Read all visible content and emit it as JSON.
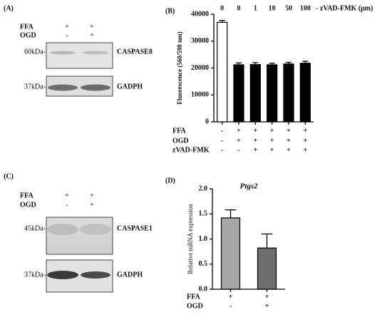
{
  "blots": [
    {
      "panel": "(A)",
      "conditions": [
        {
          "name": "FFA",
          "signs": [
            "+",
            "+"
          ]
        },
        {
          "name": "OGD",
          "signs": [
            "-",
            "+"
          ]
        }
      ],
      "rows": [
        {
          "marker": "60kDa-",
          "protein": "CASPASE8"
        },
        {
          "marker": "37kDa-",
          "protein": "GADPH"
        }
      ]
    },
    {
      "panel": "(C)",
      "conditions": [
        {
          "name": "FFA",
          "signs": [
            "+",
            "+"
          ]
        },
        {
          "name": "OGD",
          "signs": [
            "-",
            "+"
          ]
        }
      ],
      "rows": [
        {
          "marker": "45kDa-",
          "protein": "CASPASE1"
        },
        {
          "marker": "37kDa-",
          "protein": "GADPH"
        }
      ]
    }
  ],
  "chart_data": [
    {
      "type": "bar",
      "panel": "(B)",
      "ylabel": "Fluorescence (560/590 nm)",
      "categories": [
        "0",
        "0",
        "1",
        "10",
        "50",
        "100"
      ],
      "annotation": "- zVAD-FMK (μm)",
      "values": [
        37000,
        21200,
        21300,
        21200,
        21500,
        21800
      ],
      "errors": [
        700,
        700,
        700,
        600,
        600,
        700
      ],
      "colors": [
        "#ffffff",
        "#000000",
        "#000000",
        "#000000",
        "#000000",
        "#000000"
      ],
      "ylim": [
        0,
        40000
      ],
      "yticks": [
        0,
        10000,
        20000,
        30000,
        40000
      ],
      "conditions": [
        {
          "name": "FFA",
          "signs": [
            "-",
            "+",
            "+",
            "+",
            "+",
            "+"
          ]
        },
        {
          "name": "OGD",
          "signs": [
            "-",
            "+",
            "+",
            "+",
            "+",
            "+"
          ]
        },
        {
          "name": "zVAD-FMK",
          "signs": [
            "-",
            "-",
            "+",
            "+",
            "+",
            "+"
          ]
        }
      ]
    },
    {
      "type": "bar",
      "panel": "(D)",
      "title": "Ptgs2",
      "ylabel": "Relative mRNA expression",
      "values": [
        1.42,
        0.82
      ],
      "errors": [
        0.16,
        0.28
      ],
      "colors": [
        "#a6a6a6",
        "#6e6e6e"
      ],
      "ylim": [
        0,
        2
      ],
      "yticks": [
        {
          "value": 0,
          "label": "0.0"
        },
        0.5,
        {
          "value": 1,
          "label": "1.0"
        },
        1.5,
        {
          "value": 2,
          "label": "2.0"
        }
      ],
      "conditions": [
        {
          "name": "FFA",
          "signs": [
            "+",
            "+"
          ]
        },
        {
          "name": "OGD",
          "signs": [
            "-",
            "+"
          ]
        }
      ]
    }
  ]
}
